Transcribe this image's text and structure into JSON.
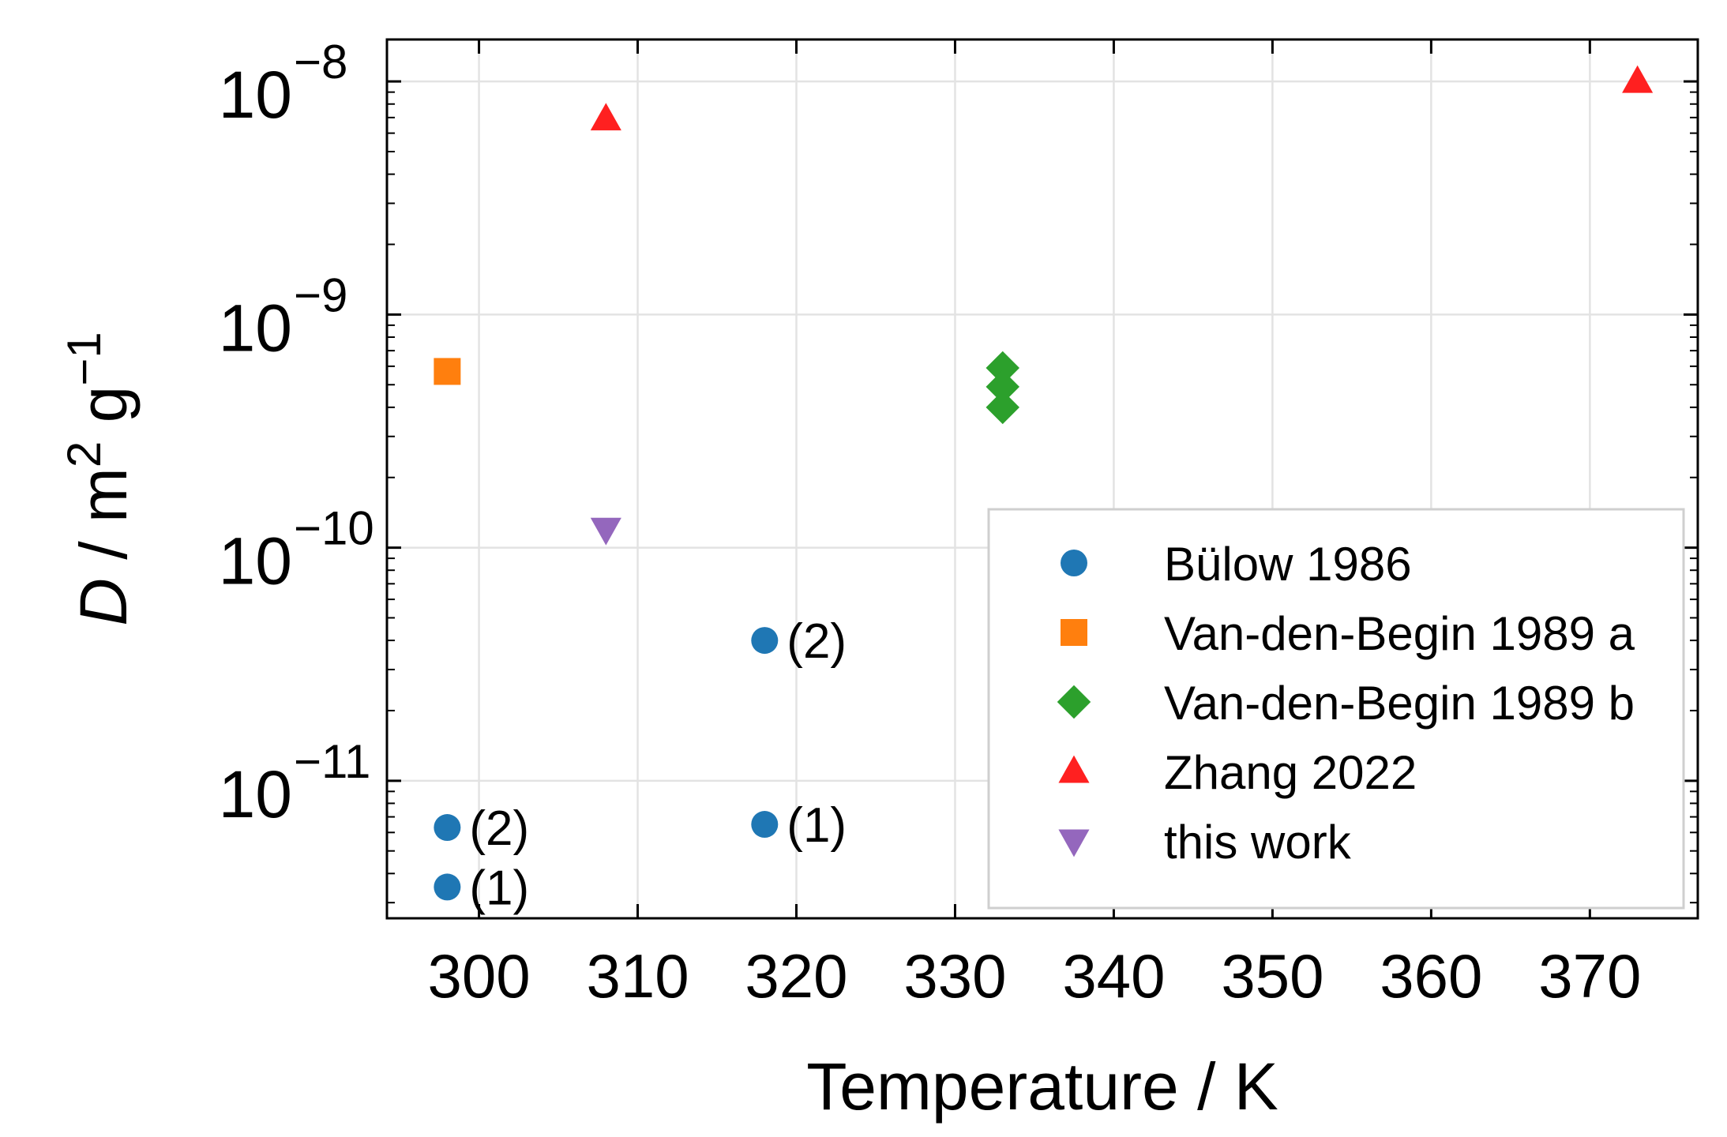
{
  "chart_data": {
    "type": "scatter",
    "title": "",
    "xlabel": "Temperature / K",
    "ylabel": {
      "symbol": "D",
      "units": "m",
      "units_exp": "2",
      "units2": "g",
      "units2_exp": "−1",
      "sep": " / "
    },
    "xscale": "linear",
    "yscale": "log",
    "xlim": [
      294.2,
      376.8
    ],
    "ylim_log10": [
      -11.59,
      -7.82
    ],
    "grid": true,
    "x_ticks": [
      {
        "value": 300,
        "label": "300"
      },
      {
        "value": 310,
        "label": "310"
      },
      {
        "value": 320,
        "label": "320"
      },
      {
        "value": 330,
        "label": "330"
      },
      {
        "value": 340,
        "label": "340"
      },
      {
        "value": 350,
        "label": "350"
      },
      {
        "value": 360,
        "label": "360"
      },
      {
        "value": 370,
        "label": "370"
      }
    ],
    "y_ticks": [
      {
        "exp": -11,
        "base": "10",
        "sup": "−11"
      },
      {
        "exp": -10,
        "base": "10",
        "sup": "−10"
      },
      {
        "exp": -9,
        "base": "10",
        "sup": "−9"
      },
      {
        "exp": -8,
        "base": "10",
        "sup": "−8"
      }
    ],
    "legend_position": "lower-right",
    "series": [
      {
        "name": "Bülow 1986",
        "marker": "circle",
        "color": "#1f77b4",
        "points": [
          {
            "x": 298,
            "y": 6.3e-12,
            "label": "(2)"
          },
          {
            "x": 298,
            "y": 3.5e-12,
            "label": "(1)"
          },
          {
            "x": 318,
            "y": 4e-11,
            "label": "(2)"
          },
          {
            "x": 318,
            "y": 6.5e-12,
            "label": "(1)"
          }
        ]
      },
      {
        "name": "Van-den-Begin 1989 a",
        "marker": "square",
        "color": "#ff7f0e",
        "points": [
          {
            "x": 298,
            "y": 5.7e-10
          }
        ]
      },
      {
        "name": "Van-den-Begin 1989 b",
        "marker": "diamond",
        "color": "#2ca02c",
        "points": [
          {
            "x": 333,
            "y": 5.9e-10
          },
          {
            "x": 333,
            "y": 4.9e-10
          },
          {
            "x": 333,
            "y": 4e-10
          }
        ]
      },
      {
        "name": "Zhang 2022",
        "marker": "triangle-up",
        "color": "#ff2020",
        "points": [
          {
            "x": 308,
            "y": 6.9e-09
          },
          {
            "x": 373,
            "y": 1e-08
          }
        ]
      },
      {
        "name": "this work",
        "marker": "triangle-down",
        "color": "#9467bd",
        "points": [
          {
            "x": 308,
            "y": 1.2e-10
          }
        ]
      }
    ]
  }
}
